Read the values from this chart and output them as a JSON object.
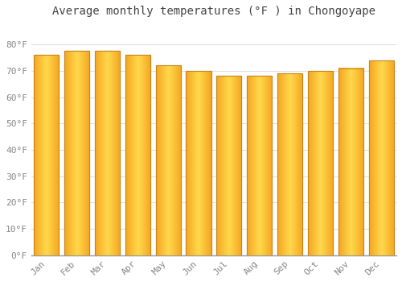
{
  "months": [
    "Jan",
    "Feb",
    "Mar",
    "Apr",
    "May",
    "Jun",
    "Jul",
    "Aug",
    "Sep",
    "Oct",
    "Nov",
    "Dec"
  ],
  "values": [
    76,
    77.5,
    77.5,
    76,
    72,
    70,
    68,
    68,
    69,
    70,
    71,
    74
  ],
  "bar_color_center": "#FFD050",
  "bar_color_edge": "#F5A623",
  "bar_outline_color": "#C8861A",
  "title": "Average monthly temperatures (°F ) in Chongoyape",
  "ylim": [
    0,
    88
  ],
  "yticks": [
    0,
    10,
    20,
    30,
    40,
    50,
    60,
    70,
    80
  ],
  "ytick_labels": [
    "0°F",
    "10°F",
    "20°F",
    "30°F",
    "40°F",
    "50°F",
    "60°F",
    "70°F",
    "80°F"
  ],
  "background_color": "#ffffff",
  "plot_bg_color": "#ffffff",
  "grid_color": "#e0e0e0",
  "title_fontsize": 10,
  "tick_fontsize": 8,
  "label_color": "#888888",
  "title_color": "#444444"
}
